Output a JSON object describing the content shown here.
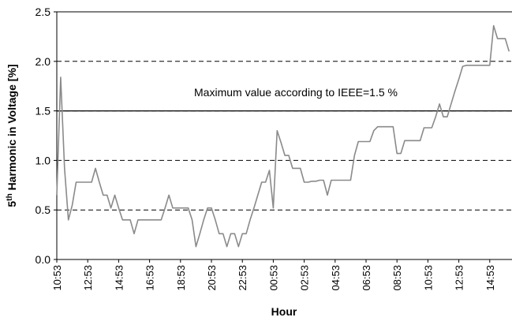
{
  "chart_data": {
    "type": "line",
    "xlabel": "Hour",
    "ylabel": [
      "5",
      "th",
      " Harmonic in Voltage [%]"
    ],
    "annotation": "Maximum value according to IEEE=1.5 %",
    "limit": 1.5,
    "categories": [
      "10:53",
      null,
      null,
      null,
      null,
      null,
      null,
      null,
      "12:53",
      null,
      null,
      null,
      null,
      null,
      null,
      null,
      "14:53",
      null,
      null,
      null,
      null,
      null,
      null,
      null,
      "16:53",
      null,
      null,
      null,
      null,
      null,
      null,
      null,
      "18:53",
      null,
      null,
      null,
      null,
      null,
      null,
      null,
      "20:53",
      null,
      null,
      null,
      null,
      null,
      null,
      null,
      "22:53",
      null,
      null,
      null,
      null,
      null,
      null,
      null,
      "00:53",
      null,
      null,
      null,
      null,
      null,
      null,
      null,
      "02:53",
      null,
      null,
      null,
      null,
      null,
      null,
      null,
      "04:53",
      null,
      null,
      null,
      null,
      null,
      null,
      null,
      "06:53",
      null,
      null,
      null,
      null,
      null,
      null,
      null,
      "08:53",
      null,
      null,
      null,
      null,
      null,
      null,
      null,
      "10:53",
      null,
      null,
      null,
      null,
      null,
      null,
      null,
      "12:53",
      null,
      null,
      null,
      null,
      null,
      null,
      null,
      "14:53",
      null,
      null,
      null,
      null,
      null
    ],
    "series": [
      {
        "color": "#8a8a8a",
        "values": [
          0.65,
          1.84,
          0.92,
          0.4,
          0.55,
          0.78,
          0.78,
          0.78,
          0.78,
          0.78,
          0.92,
          0.78,
          0.65,
          0.65,
          0.52,
          0.65,
          0.52,
          0.4,
          0.4,
          0.4,
          0.26,
          0.4,
          0.4,
          0.4,
          0.4,
          0.4,
          0.4,
          0.4,
          0.52,
          0.65,
          0.52,
          0.52,
          0.52,
          0.52,
          0.52,
          0.4,
          0.13,
          0.26,
          0.4,
          0.52,
          0.52,
          0.4,
          0.26,
          0.26,
          0.13,
          0.26,
          0.26,
          0.13,
          0.26,
          0.26,
          0.4,
          0.52,
          0.65,
          0.78,
          0.78,
          0.9,
          0.52,
          1.3,
          1.18,
          1.05,
          1.05,
          0.92,
          0.92,
          0.92,
          0.78,
          0.78,
          0.79,
          0.79,
          0.8,
          0.8,
          0.65,
          0.8,
          0.8,
          0.8,
          0.8,
          0.8,
          0.8,
          1.05,
          1.19,
          1.19,
          1.19,
          1.19,
          1.3,
          1.34,
          1.34,
          1.34,
          1.34,
          1.34,
          1.07,
          1.07,
          1.2,
          1.2,
          1.2,
          1.2,
          1.2,
          1.33,
          1.33,
          1.33,
          1.44,
          1.57,
          1.44,
          1.44,
          1.57,
          1.7,
          1.82,
          1.95,
          1.96,
          1.96,
          1.96,
          1.96,
          1.96,
          1.96,
          1.96,
          2.36,
          2.23,
          2.23,
          2.23,
          2.1
        ]
      }
    ],
    "ylim": [
      0,
      2.5
    ],
    "yticks": [
      {
        "value": 0,
        "label": "0.0"
      },
      0.5,
      {
        "value": 1,
        "label": "1.0"
      },
      1.5,
      {
        "value": 2,
        "label": "2.0"
      },
      2.5
    ],
    "grid": true
  }
}
